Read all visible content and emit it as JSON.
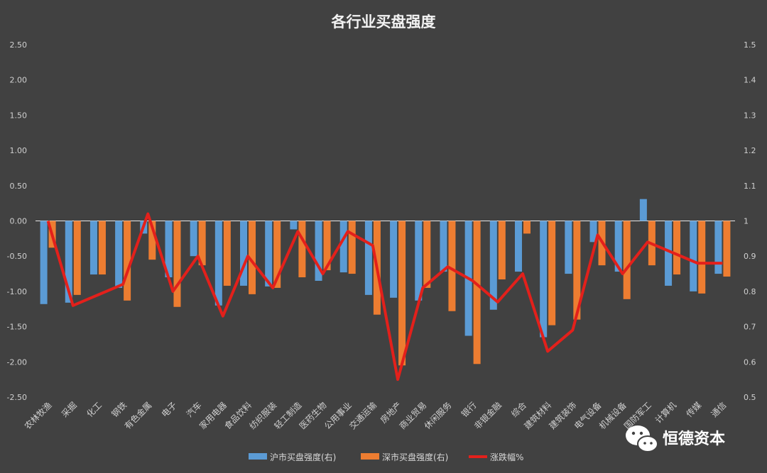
{
  "chart_data": {
    "type": "bar",
    "title": "各行业买盘强度",
    "categories": [
      "农林牧渔",
      "采掘",
      "化工",
      "钢铁",
      "有色金属",
      "电子",
      "汽车",
      "家用电器",
      "食品饮料",
      "纺织服装",
      "轻工制造",
      "医药生物",
      "公用事业",
      "交通运输",
      "房地产",
      "商业贸易",
      "休闲服务",
      "银行",
      "非银金融",
      "综合",
      "建筑材料",
      "建筑装饰",
      "电气设备",
      "机械设备",
      "国防军工",
      "计算机",
      "传媒",
      "通信"
    ],
    "left_axis": {
      "min": -2.5,
      "max": 2.5,
      "ticks": [
        "2.50",
        "2.00",
        "1.50",
        "1.00",
        "0.50",
        "0.00",
        "-0.50",
        "-1.00",
        "-1.50",
        "-2.00",
        "-2.50"
      ]
    },
    "right_axis": {
      "min": 0.5,
      "max": 1.5,
      "ticks": [
        "1.5",
        "1.4",
        "1.3",
        "1.2",
        "1.1",
        "1",
        "0.9",
        "0.8",
        "0.7",
        "0.6",
        "0.5"
      ]
    },
    "series": [
      {
        "name": "沪市买盘强度(右)",
        "axis": "left",
        "kind": "bar",
        "color": "#5b9bd5",
        "values": [
          -1.18,
          -1.16,
          -0.76,
          -0.95,
          -0.18,
          -0.8,
          -0.5,
          -1.2,
          -0.92,
          -0.93,
          -0.12,
          -0.85,
          -0.73,
          -1.05,
          -1.09,
          -1.13,
          -0.72,
          -1.63,
          -1.26,
          -0.72,
          -1.65,
          -0.75,
          -0.3,
          -0.72,
          0.31,
          -0.92,
          -1.0,
          -0.75
        ]
      },
      {
        "name": "深市买盘强度(右)",
        "axis": "left",
        "kind": "bar",
        "color": "#ed7d31",
        "values": [
          -0.38,
          -1.05,
          -0.76,
          -1.13,
          -0.55,
          -1.22,
          -0.63,
          -0.92,
          -1.04,
          -0.95,
          -0.8,
          -0.7,
          -0.75,
          -1.33,
          -2.05,
          -0.95,
          -1.28,
          -2.03,
          -0.83,
          -0.18,
          -1.48,
          -1.4,
          -0.63,
          -1.11,
          -0.63,
          -0.76,
          -1.03,
          -0.79
        ]
      },
      {
        "name": "涨跌幅%",
        "axis": "right",
        "kind": "line",
        "color": "#e3201b",
        "values": [
          1.0,
          0.76,
          0.79,
          0.82,
          1.02,
          0.8,
          0.9,
          0.73,
          0.9,
          0.81,
          0.97,
          0.85,
          0.97,
          0.93,
          0.55,
          0.81,
          0.87,
          0.83,
          0.77,
          0.85,
          0.63,
          0.69,
          0.96,
          0.85,
          0.94,
          0.91,
          0.88,
          0.88
        ]
      }
    ],
    "zero_line": true,
    "legend_position": "bottom"
  },
  "watermark": {
    "text": "恒德资本",
    "icon": "wechat-icon"
  },
  "colors": {
    "background": "#414141",
    "text": "#d9d9d9"
  }
}
